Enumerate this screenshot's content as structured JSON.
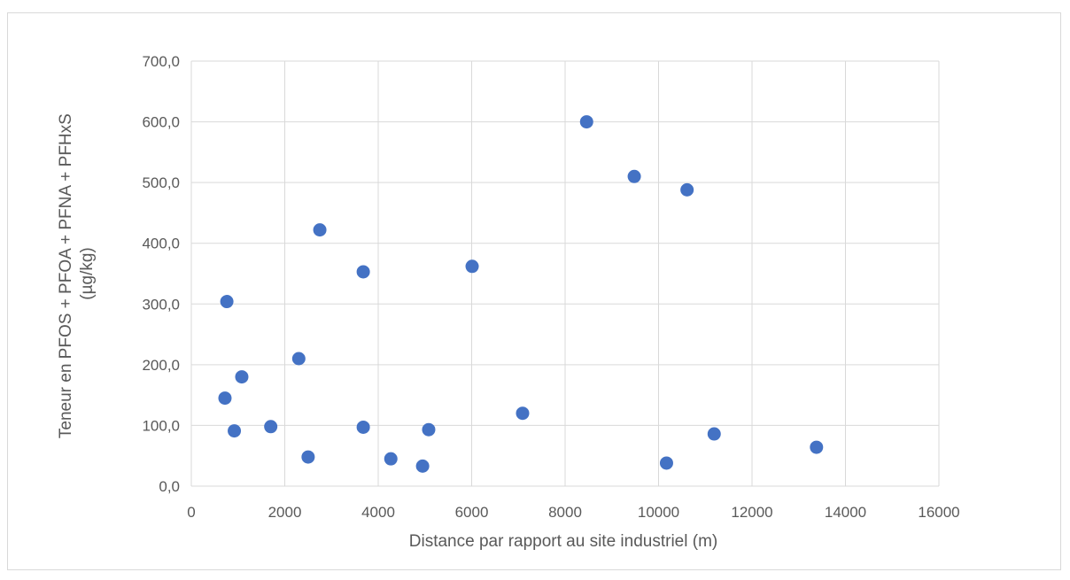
{
  "chart_data": {
    "type": "scatter",
    "title": "",
    "xlabel": "Distance par rapport au site industriel (m)",
    "ylabel_line1": "Teneur en PFOS + PFOA + PFNA + PFHxS",
    "ylabel_line2": "(µg/kg)",
    "xlim": [
      0,
      16000
    ],
    "ylim": [
      0,
      700
    ],
    "x_ticks": [
      "0",
      "2000",
      "4000",
      "6000",
      "8000",
      "10000",
      "12000",
      "14000",
      "16000"
    ],
    "y_ticks": [
      "0,0",
      "100,0",
      "200,0",
      "300,0",
      "400,0",
      "500,0",
      "600,0",
      "700,0"
    ],
    "grid": true,
    "legend": "none",
    "marker_color": "#4472C4",
    "grid_color": "#d9d9d9",
    "points": [
      {
        "x": 720,
        "y": 145
      },
      {
        "x": 760,
        "y": 304
      },
      {
        "x": 920,
        "y": 91
      },
      {
        "x": 1080,
        "y": 180
      },
      {
        "x": 1700,
        "y": 98
      },
      {
        "x": 2300,
        "y": 210
      },
      {
        "x": 2500,
        "y": 48
      },
      {
        "x": 2750,
        "y": 422
      },
      {
        "x": 3680,
        "y": 353
      },
      {
        "x": 3680,
        "y": 97
      },
      {
        "x": 4270,
        "y": 45
      },
      {
        "x": 4950,
        "y": 33
      },
      {
        "x": 5080,
        "y": 93
      },
      {
        "x": 6010,
        "y": 362
      },
      {
        "x": 7090,
        "y": 120
      },
      {
        "x": 8460,
        "y": 600
      },
      {
        "x": 9480,
        "y": 510
      },
      {
        "x": 10170,
        "y": 38
      },
      {
        "x": 10610,
        "y": 488
      },
      {
        "x": 11190,
        "y": 86
      },
      {
        "x": 13380,
        "y": 64
      }
    ]
  }
}
